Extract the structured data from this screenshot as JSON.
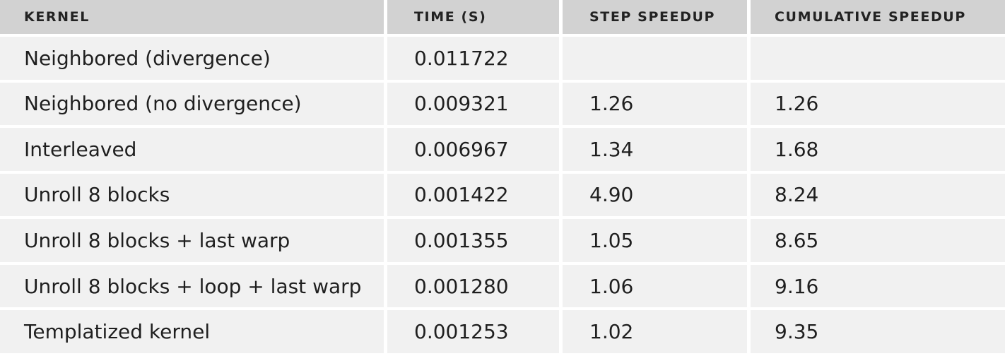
{
  "table": {
    "headers": [
      "KERNEL",
      "TIME (S)",
      "STEP SPEEDUP",
      "CUMULATIVE SPEEDUP"
    ],
    "rows": [
      [
        "Neighbored (divergence)",
        "0.011722",
        "",
        ""
      ],
      [
        "Neighbored (no divergence)",
        "0.009321",
        "1.26",
        "1.26"
      ],
      [
        "Interleaved",
        "0.006967",
        "1.34",
        "1.68"
      ],
      [
        "Unroll 8 blocks",
        "0.001422",
        "4.90",
        "8.24"
      ],
      [
        "Unroll 8 blocks + last warp",
        "0.001355",
        "1.05",
        "8.65"
      ],
      [
        "Unroll 8 blocks + loop + last warp",
        "0.001280",
        "1.06",
        "9.16"
      ],
      [
        "Templatized kernel",
        "0.001253",
        "1.02",
        "9.35"
      ]
    ]
  }
}
